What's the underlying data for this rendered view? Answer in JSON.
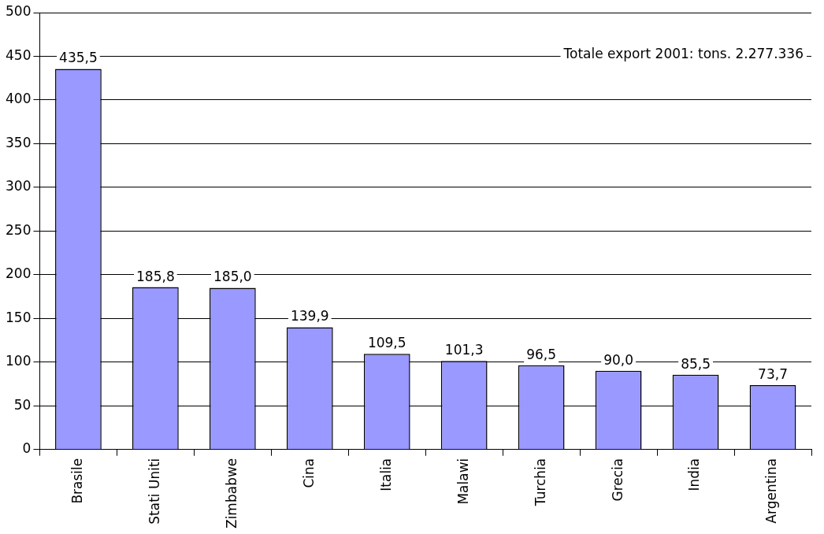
{
  "chart_data": {
    "type": "bar",
    "categories": [
      "Brasile",
      "Stati Uniti",
      "Zimbabwe",
      "Cina",
      "Italia",
      "Malawi",
      "Turchia",
      "Grecia",
      "India",
      "Argentina"
    ],
    "values": [
      435.5,
      185.8,
      185.0,
      139.9,
      109.5,
      101.3,
      96.5,
      90.0,
      85.5,
      73.7
    ],
    "value_labels": [
      "435,5",
      "185,8",
      "185,0",
      "139,9",
      "109,5",
      "101,3",
      "96,5",
      "90,0",
      "85,5",
      "73,7"
    ],
    "color": "#9999ff",
    "ylim": [
      0,
      500
    ],
    "yticks": [
      0,
      50,
      100,
      150,
      200,
      250,
      300,
      350,
      400,
      450,
      500
    ],
    "grid": "y",
    "legend": false,
    "annotations": [
      "Totale export 2001: tons. 2.277.336"
    ]
  }
}
